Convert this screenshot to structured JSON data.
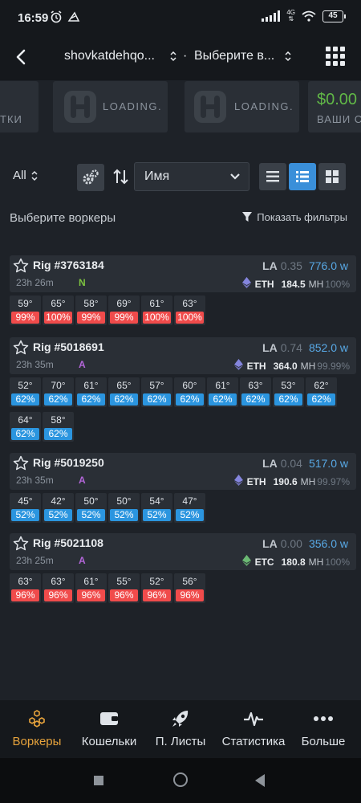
{
  "status_bar": {
    "time": "16:59",
    "network": "4G",
    "battery": "45"
  },
  "header": {
    "farm": "shovkatdehqo...",
    "separator": "·",
    "worker_select": "Выберите в..."
  },
  "cards": [
    {
      "label": "ТКИ"
    },
    {
      "loading": "LOADING."
    },
    {
      "loading": "LOADING."
    },
    {
      "value": "$0.00",
      "label": "ВАШИ С"
    }
  ],
  "toolbar": {
    "all": "All",
    "sort_by": "Имя"
  },
  "select_title": "Выберите воркеры",
  "show_filters": "Показать фильтры",
  "colors": {
    "fan_red": "#f04b4b",
    "fan_blue": "#2b95df",
    "accent": "#3a8fd9",
    "nav_active": "#e7a33c"
  },
  "workers": [
    {
      "name": "Rig #3763184",
      "uptime": "23h 26m",
      "os": "N",
      "os_color": "#7dc340",
      "la_label": "LA",
      "la": "0.35",
      "power": "776.0 w",
      "coin": "ETH",
      "coin_icon": "ethereum-icon",
      "hashrate": "184.5",
      "unit": "MH",
      "efficiency": "100%",
      "gpus": [
        {
          "temp": "59°",
          "fan": "99%",
          "color": "red"
        },
        {
          "temp": "65°",
          "fan": "100%",
          "color": "red"
        },
        {
          "temp": "58°",
          "fan": "99%",
          "color": "red"
        },
        {
          "temp": "69°",
          "fan": "99%",
          "color": "red"
        },
        {
          "temp": "61°",
          "fan": "100%",
          "color": "red"
        },
        {
          "temp": "63°",
          "fan": "100%",
          "color": "red"
        }
      ]
    },
    {
      "name": "Rig #5018691",
      "uptime": "23h 35m",
      "os": "A",
      "os_color": "#b366d9",
      "la_label": "LA",
      "la": "0.74",
      "power": "852.0 w",
      "coin": "ETH",
      "coin_icon": "ethereum-icon",
      "hashrate": "364.0",
      "unit": "MH",
      "efficiency": "99.99%",
      "gpus": [
        {
          "temp": "52°",
          "fan": "62%",
          "color": "blue"
        },
        {
          "temp": "70°",
          "fan": "62%",
          "color": "blue"
        },
        {
          "temp": "61°",
          "fan": "62%",
          "color": "blue"
        },
        {
          "temp": "65°",
          "fan": "62%",
          "color": "blue"
        },
        {
          "temp": "57°",
          "fan": "62%",
          "color": "blue"
        },
        {
          "temp": "60°",
          "fan": "62%",
          "color": "blue"
        },
        {
          "temp": "61°",
          "fan": "62%",
          "color": "blue"
        },
        {
          "temp": "63°",
          "fan": "62%",
          "color": "blue"
        },
        {
          "temp": "53°",
          "fan": "62%",
          "color": "blue"
        },
        {
          "temp": "62°",
          "fan": "62%",
          "color": "blue"
        },
        {
          "temp": "64°",
          "fan": "62%",
          "color": "blue"
        },
        {
          "temp": "58°",
          "fan": "62%",
          "color": "blue"
        }
      ]
    },
    {
      "name": "Rig #5019250",
      "uptime": "23h 35m",
      "os": "A",
      "os_color": "#b366d9",
      "la_label": "LA",
      "la": "0.04",
      "power": "517.0 w",
      "coin": "ETH",
      "coin_icon": "ethereum-icon",
      "hashrate": "190.6",
      "unit": "MH",
      "efficiency": "99.97%",
      "gpus": [
        {
          "temp": "45°",
          "fan": "52%",
          "color": "blue"
        },
        {
          "temp": "42°",
          "fan": "52%",
          "color": "blue"
        },
        {
          "temp": "50°",
          "fan": "52%",
          "color": "blue"
        },
        {
          "temp": "50°",
          "fan": "52%",
          "color": "blue"
        },
        {
          "temp": "54°",
          "fan": "52%",
          "color": "blue"
        },
        {
          "temp": "47°",
          "fan": "52%",
          "color": "blue"
        }
      ]
    },
    {
      "name": "Rig #5021108",
      "uptime": "23h 25m",
      "os": "A",
      "os_color": "#b366d9",
      "la_label": "LA",
      "la": "0.00",
      "power": "356.0 w",
      "coin": "ETC",
      "coin_icon": "ethereum-classic-icon",
      "hashrate": "180.8",
      "unit": "MH",
      "efficiency": "100%",
      "gpus": [
        {
          "temp": "63°",
          "fan": "96%",
          "color": "red"
        },
        {
          "temp": "63°",
          "fan": "96%",
          "color": "red"
        },
        {
          "temp": "61°",
          "fan": "96%",
          "color": "red"
        },
        {
          "temp": "55°",
          "fan": "96%",
          "color": "red"
        },
        {
          "temp": "52°",
          "fan": "96%",
          "color": "red"
        },
        {
          "temp": "56°",
          "fan": "96%",
          "color": "red"
        }
      ]
    }
  ],
  "nav": [
    {
      "label": "Воркеры",
      "icon": "workers-hexagon-icon",
      "active": true
    },
    {
      "label": "Кошельки",
      "icon": "wallet-icon",
      "active": false
    },
    {
      "label": "П. Листы",
      "icon": "rocket-icon",
      "active": false
    },
    {
      "label": "Статистика",
      "icon": "pulse-icon",
      "active": false
    },
    {
      "label": "Больше",
      "icon": "more-dots-icon",
      "active": false
    }
  ]
}
